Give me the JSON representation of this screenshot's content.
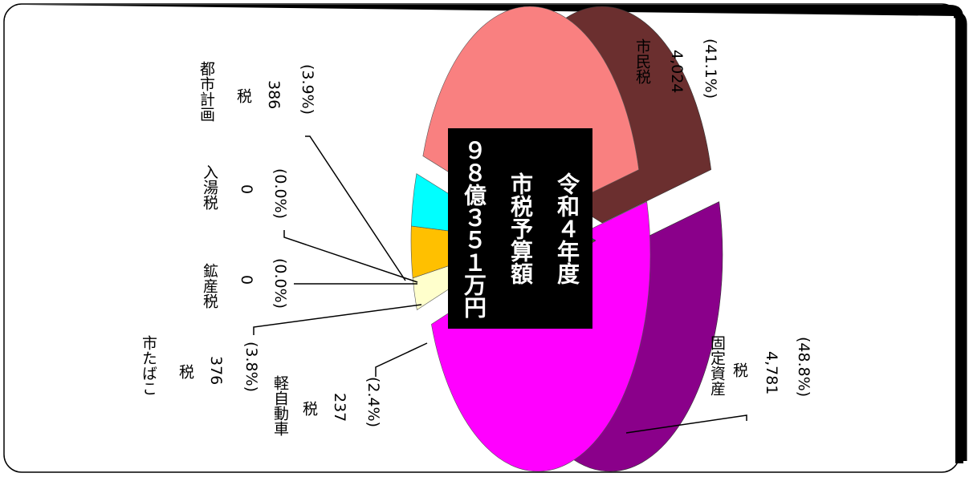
{
  "center_box": {
    "line1": "令和４年度",
    "line2": "市税予算額",
    "line3": "９８億３５１万円"
  },
  "chart_data": {
    "type": "pie",
    "title": "",
    "orientation": "rotated 90° clockwise (vertical Japanese text)",
    "slices": [
      {
        "name": "市民税",
        "value": 4024,
        "percent": 41.1,
        "color": "#f98080",
        "side_color": "#6b2f2f"
      },
      {
        "name": "固定資産税",
        "value": 4781,
        "percent": 48.8,
        "color": "#ff00ff",
        "side_color": "#8a008a"
      },
      {
        "name": "軽自動車税",
        "value": 237,
        "percent": 2.4,
        "color": "#ffffcc",
        "side_color": "#7a7a50"
      },
      {
        "name": "市たばこ税",
        "value": 376,
        "percent": 3.8,
        "color": "#ffc000",
        "side_color": "#7a5c00"
      },
      {
        "name": "鉱産税",
        "value": 0,
        "percent": 0.0,
        "color": "#cccccc",
        "side_color": "#888888"
      },
      {
        "name": "入湯税",
        "value": 0,
        "percent": 0.0,
        "color": "#cccccc",
        "side_color": "#888888"
      },
      {
        "name": "都市計画税",
        "value": 386,
        "percent": 3.9,
        "color": "#00ffff",
        "side_color": "#007a7a"
      }
    ]
  },
  "labels": {
    "shimin": {
      "name": "市民税",
      "value": "4,024",
      "pct": "(41.1%)"
    },
    "kotei": {
      "name1": "固定資産",
      "name2": "税",
      "value": "4,781",
      "pct": "(48.8%)"
    },
    "kei": {
      "name1": "軽自動車",
      "name2": "税",
      "value": "237",
      "pct": "(2.4%)"
    },
    "tabako": {
      "name1": "市たばこ",
      "name2": "税",
      "value": "376",
      "pct": "(3.8%)"
    },
    "kosan": {
      "name": "鉱産税",
      "value": "0",
      "pct": "(0.0%)"
    },
    "nyuto": {
      "name": "入湯税",
      "value": "0",
      "pct": "(0.0%)"
    },
    "toshi": {
      "name1": "都市計画",
      "name2": "税",
      "value": "386",
      "pct": "(3.9%)"
    }
  }
}
